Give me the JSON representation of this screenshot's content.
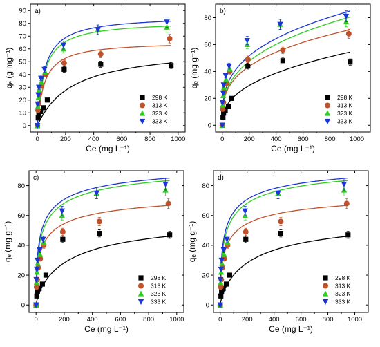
{
  "chart_data": [
    {
      "panel": "a)",
      "type": "scatter",
      "xlabel": "Ce (mg L⁻¹)",
      "ylabel": "qₑ (g mg⁻¹)",
      "xlim": [
        -50,
        1050
      ],
      "ylim": [
        -5,
        95
      ],
      "xticks": [
        0,
        200,
        400,
        600,
        800,
        1000
      ],
      "yticks": [
        0,
        10,
        20,
        30,
        40,
        50,
        60,
        70,
        80,
        90
      ],
      "legend_position": "bottom-right",
      "series": [
        {
          "name": "298 K",
          "marker": "square",
          "color": "#000000",
          "points": [
            [
              0,
              0
            ],
            [
              5,
              6
            ],
            [
              10,
              9
            ],
            [
              22,
              11
            ],
            [
              45,
              14
            ],
            [
              70,
              20
            ],
            [
              190,
              44
            ],
            [
              450,
              48
            ],
            [
              950,
              47
            ]
          ],
          "fit": {
            "model": "langmuir",
            "qmax": 62,
            "K": 0.004
          }
        },
        {
          "name": "313 K",
          "marker": "circle",
          "color": "#c0522b",
          "points": [
            [
              0,
              0
            ],
            [
              4,
              12
            ],
            [
              8,
              17
            ],
            [
              15,
              25
            ],
            [
              30,
              31
            ],
            [
              55,
              40
            ],
            [
              190,
              49
            ],
            [
              450,
              56
            ],
            [
              940,
              68
            ]
          ],
          "fit": {
            "model": "langmuir",
            "qmax": 66,
            "K": 0.02
          }
        },
        {
          "name": "323 K",
          "marker": "triangle-up",
          "color": "#2ecc1e",
          "points": [
            [
              0,
              0
            ],
            [
              3,
              15
            ],
            [
              7,
              22
            ],
            [
              12,
              28
            ],
            [
              28,
              34
            ],
            [
              55,
              42
            ],
            [
              185,
              60
            ],
            [
              430,
              75
            ],
            [
              920,
              77
            ]
          ],
          "fit": {
            "model": "langmuir",
            "qmax": 82,
            "K": 0.02
          }
        },
        {
          "name": "333 K",
          "marker": "triangle-down",
          "color": "#1a35d6",
          "points": [
            [
              0,
              0
            ],
            [
              2,
              17
            ],
            [
              6,
              24
            ],
            [
              10,
              30
            ],
            [
              25,
              37
            ],
            [
              50,
              44
            ],
            [
              185,
              63
            ],
            [
              430,
              75
            ],
            [
              920,
              81
            ]
          ],
          "fit": {
            "model": "langmuir",
            "qmax": 86,
            "K": 0.02
          }
        }
      ]
    },
    {
      "panel": "b)",
      "type": "scatter",
      "xlabel": "Ce (mg L⁻¹)",
      "ylabel": "qₑ (mg g⁻¹)",
      "xlim": [
        -50,
        1100
      ],
      "ylim": [
        -5,
        90
      ],
      "xticks": [
        0,
        200,
        400,
        600,
        800,
        1000
      ],
      "yticks": [
        0,
        20,
        40,
        60,
        80
      ],
      "legend_position": "bottom-right",
      "series": [
        {
          "name": "298 K",
          "marker": "square",
          "color": "#000000",
          "points": [
            [
              0,
              0
            ],
            [
              5,
              6
            ],
            [
              10,
              9
            ],
            [
              22,
              11
            ],
            [
              45,
              14
            ],
            [
              70,
              20
            ],
            [
              190,
              44
            ],
            [
              450,
              48
            ],
            [
              950,
              47
            ]
          ],
          "fit": {
            "model": "freundlich",
            "KF": 3.7,
            "n": 2.55
          }
        },
        {
          "name": "313 K",
          "marker": "circle",
          "color": "#c0522b",
          "points": [
            [
              0,
              0
            ],
            [
              4,
              12
            ],
            [
              8,
              17
            ],
            [
              15,
              25
            ],
            [
              30,
              31
            ],
            [
              55,
              40
            ],
            [
              190,
              49
            ],
            [
              450,
              56
            ],
            [
              940,
              68
            ]
          ],
          "fit": {
            "model": "freundlich",
            "KF": 8.5,
            "n": 3.23
          }
        },
        {
          "name": "323 K",
          "marker": "triangle-up",
          "color": "#2ecc1e",
          "points": [
            [
              0,
              0
            ],
            [
              3,
              15
            ],
            [
              7,
              22
            ],
            [
              12,
              28
            ],
            [
              28,
              34
            ],
            [
              55,
              42
            ],
            [
              185,
              60
            ],
            [
              430,
              75
            ],
            [
              920,
              77
            ]
          ],
          "fit": {
            "model": "freundlich",
            "KF": 8.0,
            "n": 2.97
          }
        },
        {
          "name": "333 K",
          "marker": "triangle-down",
          "color": "#1a35d6",
          "points": [
            [
              0,
              0
            ],
            [
              2,
              17
            ],
            [
              6,
              24
            ],
            [
              10,
              30
            ],
            [
              25,
              37
            ],
            [
              50,
              44
            ],
            [
              185,
              63
            ],
            [
              430,
              75
            ],
            [
              920,
              81
            ]
          ],
          "fit": {
            "model": "freundlich",
            "KF": 9.5,
            "n": 3.13
          }
        }
      ]
    },
    {
      "panel": "c)",
      "type": "scatter",
      "xlabel": "Ce (mg L⁻¹)",
      "ylabel": "qₑ (mg g⁻¹)",
      "xlim": [
        -50,
        1050
      ],
      "ylim": [
        -5,
        90
      ],
      "xticks": [
        0,
        200,
        400,
        600,
        800,
        1000
      ],
      "yticks": [
        0,
        20,
        40,
        60,
        80
      ],
      "legend_position": "bottom-right",
      "series": [
        {
          "name": "298 K",
          "marker": "square",
          "color": "#000000",
          "points": [
            [
              0,
              0
            ],
            [
              5,
              6
            ],
            [
              10,
              9
            ],
            [
              22,
              11
            ],
            [
              45,
              14
            ],
            [
              70,
              20
            ],
            [
              190,
              44
            ],
            [
              450,
              48
            ],
            [
              950,
              47
            ]
          ],
          "fit": {
            "model": "sips",
            "qmax": 62,
            "K": 0.004,
            "n": 0.8
          }
        },
        {
          "name": "313 K",
          "marker": "circle",
          "color": "#c0522b",
          "points": [
            [
              0,
              0
            ],
            [
              4,
              12
            ],
            [
              8,
              17
            ],
            [
              15,
              25
            ],
            [
              30,
              31
            ],
            [
              55,
              40
            ],
            [
              190,
              49
            ],
            [
              450,
              56
            ],
            [
              940,
              68
            ]
          ],
          "fit": {
            "model": "sips",
            "qmax": 80,
            "K": 0.02,
            "n": 0.55
          }
        },
        {
          "name": "323 K",
          "marker": "triangle-up",
          "color": "#2ecc1e",
          "points": [
            [
              0,
              0
            ],
            [
              3,
              15
            ],
            [
              7,
              22
            ],
            [
              12,
              28
            ],
            [
              28,
              34
            ],
            [
              55,
              42
            ],
            [
              185,
              60
            ],
            [
              430,
              75
            ],
            [
              920,
              77
            ]
          ],
          "fit": {
            "model": "sips",
            "qmax": 100,
            "K": 0.02,
            "n": 0.55
          }
        },
        {
          "name": "333 K",
          "marker": "triangle-down",
          "color": "#1a35d6",
          "points": [
            [
              0,
              0
            ],
            [
              2,
              17
            ],
            [
              6,
              24
            ],
            [
              10,
              30
            ],
            [
              25,
              37
            ],
            [
              50,
              44
            ],
            [
              185,
              63
            ],
            [
              430,
              75
            ],
            [
              920,
              81
            ]
          ],
          "fit": {
            "model": "sips",
            "qmax": 100,
            "K": 0.025,
            "n": 0.55
          }
        }
      ]
    },
    {
      "panel": "d)",
      "type": "scatter",
      "xlabel": "Ce (mg L⁻¹)",
      "ylabel": "qₑ (mg g⁻¹)",
      "xlim": [
        -50,
        1100
      ],
      "ylim": [
        -5,
        90
      ],
      "xticks": [
        0,
        200,
        400,
        600,
        800,
        1000
      ],
      "yticks": [
        0,
        20,
        40,
        60,
        80
      ],
      "legend_position": "bottom-right",
      "series": [
        {
          "name": "298 K",
          "marker": "square",
          "color": "#000000",
          "points": [
            [
              0,
              0
            ],
            [
              5,
              6
            ],
            [
              10,
              9
            ],
            [
              22,
              11
            ],
            [
              45,
              14
            ],
            [
              70,
              20
            ],
            [
              190,
              44
            ],
            [
              450,
              48
            ],
            [
              950,
              47
            ]
          ],
          "fit": {
            "model": "sips",
            "qmax": 62,
            "K": 0.004,
            "n": 0.8
          }
        },
        {
          "name": "313 K",
          "marker": "circle",
          "color": "#c0522b",
          "points": [
            [
              0,
              0
            ],
            [
              4,
              12
            ],
            [
              8,
              17
            ],
            [
              15,
              25
            ],
            [
              30,
              31
            ],
            [
              55,
              40
            ],
            [
              190,
              49
            ],
            [
              450,
              56
            ],
            [
              940,
              68
            ]
          ],
          "fit": {
            "model": "sips",
            "qmax": 80,
            "K": 0.02,
            "n": 0.55
          }
        },
        {
          "name": "323 K",
          "marker": "triangle-up",
          "color": "#2ecc1e",
          "points": [
            [
              0,
              0
            ],
            [
              3,
              15
            ],
            [
              7,
              22
            ],
            [
              12,
              28
            ],
            [
              28,
              34
            ],
            [
              55,
              42
            ],
            [
              185,
              60
            ],
            [
              430,
              75
            ],
            [
              920,
              77
            ]
          ],
          "fit": {
            "model": "sips",
            "qmax": 100,
            "K": 0.02,
            "n": 0.55
          }
        },
        {
          "name": "333 K",
          "marker": "triangle-down",
          "color": "#1a35d6",
          "points": [
            [
              0,
              0
            ],
            [
              2,
              17
            ],
            [
              6,
              24
            ],
            [
              10,
              30
            ],
            [
              25,
              37
            ],
            [
              50,
              44
            ],
            [
              185,
              63
            ],
            [
              430,
              75
            ],
            [
              920,
              81
            ]
          ],
          "fit": {
            "model": "sips",
            "qmax": 100,
            "K": 0.025,
            "n": 0.55
          }
        }
      ]
    }
  ]
}
